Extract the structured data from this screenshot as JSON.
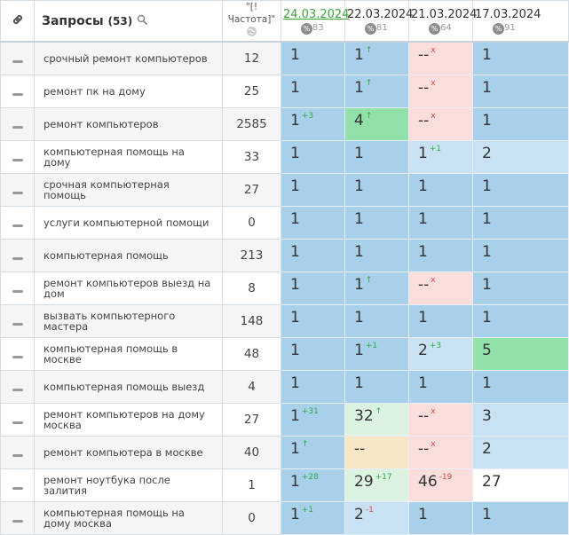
{
  "header": {
    "title": "Запросы",
    "count": "(53)",
    "frequency": "\"[!Частота]\"",
    "badge": "%",
    "dates": [
      {
        "label": "24.03.2024",
        "count": 83
      },
      {
        "label": "22.03.2024",
        "count": 81
      },
      {
        "label": "21.03.2024",
        "count": 64
      },
      {
        "label": "17.03.2024",
        "count": 91
      }
    ]
  },
  "colors": {
    "blue": "#a9d0ea",
    "light": "#c8e2f4",
    "green": "#92e1ab",
    "pink": "#f9dedb",
    "yellow": "#f5e7c4",
    "pale": "#ddf3e2",
    "white": "#ffffff"
  },
  "table": {
    "rows": [
      {
        "query": "срочный ремонт компьютеров",
        "frequency": 12,
        "positions": [
          {
            "value": 1,
            "color": "blue"
          },
          {
            "value": 1,
            "change": "↑",
            "color": "blue"
          },
          {
            "value": "--",
            "change": "x",
            "color": "pink"
          },
          {
            "value": 1,
            "color": "blue"
          }
        ]
      },
      {
        "query": "ремонт пк на дому",
        "frequency": 25,
        "positions": [
          {
            "value": 1,
            "color": "blue"
          },
          {
            "value": 1,
            "change": "↑",
            "color": "blue"
          },
          {
            "value": "--",
            "change": "x",
            "color": "pink"
          },
          {
            "value": 1,
            "color": "blue"
          }
        ]
      },
      {
        "query": "ремонт компьютеров",
        "frequency": 2585,
        "positions": [
          {
            "value": 1,
            "change": "+3",
            "color": "blue"
          },
          {
            "value": 4,
            "change": "↑",
            "color": "green"
          },
          {
            "value": "--",
            "change": "x",
            "color": "pink"
          },
          {
            "value": 1,
            "color": "blue"
          }
        ]
      },
      {
        "query": "компьютерная помощь на дому",
        "frequency": 33,
        "positions": [
          {
            "value": 1,
            "color": "blue"
          },
          {
            "value": 1,
            "color": "blue"
          },
          {
            "value": 1,
            "change": "+1",
            "color": "light"
          },
          {
            "value": 2,
            "color": "light"
          }
        ]
      },
      {
        "query": "срочная компьютерная помощь",
        "frequency": 27,
        "positions": [
          {
            "value": 1,
            "color": "blue"
          },
          {
            "value": 1,
            "color": "blue"
          },
          {
            "value": 1,
            "color": "blue"
          },
          {
            "value": 1,
            "color": "blue"
          }
        ]
      },
      {
        "query": "услуги компьютерной помощи",
        "frequency": 0,
        "positions": [
          {
            "value": 1,
            "color": "blue"
          },
          {
            "value": 1,
            "color": "blue"
          },
          {
            "value": 1,
            "color": "blue"
          },
          {
            "value": 1,
            "color": "blue"
          }
        ]
      },
      {
        "query": "компьютерная помощь",
        "frequency": 213,
        "positions": [
          {
            "value": 1,
            "color": "blue"
          },
          {
            "value": 1,
            "color": "blue"
          },
          {
            "value": 1,
            "color": "blue"
          },
          {
            "value": 1,
            "color": "blue"
          }
        ]
      },
      {
        "query": "ремонт компьютеров выезд на дом",
        "frequency": 8,
        "positions": [
          {
            "value": 1,
            "color": "blue"
          },
          {
            "value": 1,
            "change": "↑",
            "color": "blue"
          },
          {
            "value": "--",
            "change": "x",
            "color": "pink"
          },
          {
            "value": 1,
            "color": "blue"
          }
        ]
      },
      {
        "query": "вызвать компьютерного мастера",
        "frequency": 148,
        "positions": [
          {
            "value": 1,
            "color": "blue"
          },
          {
            "value": 1,
            "color": "blue"
          },
          {
            "value": 1,
            "color": "blue"
          },
          {
            "value": 1,
            "color": "blue"
          }
        ]
      },
      {
        "query": "компьютерная помощь в москве",
        "frequency": 48,
        "positions": [
          {
            "value": 1,
            "color": "blue"
          },
          {
            "value": 1,
            "change": "+1",
            "color": "blue"
          },
          {
            "value": 2,
            "change": "+3",
            "color": "light"
          },
          {
            "value": 5,
            "color": "green"
          }
        ]
      },
      {
        "query": "компьютерная помощь выезд",
        "frequency": 4,
        "positions": [
          {
            "value": 1,
            "color": "blue"
          },
          {
            "value": 1,
            "color": "blue"
          },
          {
            "value": 1,
            "color": "blue"
          },
          {
            "value": 1,
            "color": "blue"
          }
        ]
      },
      {
        "query": "ремонт компьютеров на дому москва",
        "frequency": 27,
        "positions": [
          {
            "value": 1,
            "change": "+31",
            "color": "blue"
          },
          {
            "value": 32,
            "change": "↑",
            "color": "pale"
          },
          {
            "value": "--",
            "change": "x",
            "color": "pink"
          },
          {
            "value": 3,
            "color": "light"
          }
        ]
      },
      {
        "query": "ремонт компьютера в москве",
        "frequency": 40,
        "positions": [
          {
            "value": 1,
            "change": "↑",
            "color": "blue"
          },
          {
            "value": "--",
            "color": "yellow"
          },
          {
            "value": "--",
            "change": "x",
            "color": "pink"
          },
          {
            "value": 2,
            "color": "light"
          }
        ]
      },
      {
        "query": "ремонт ноутбука после залития",
        "frequency": 1,
        "positions": [
          {
            "value": 1,
            "change": "+28",
            "color": "blue"
          },
          {
            "value": 29,
            "change": "+17",
            "color": "pale"
          },
          {
            "value": 46,
            "change": "-19",
            "color": "pink"
          },
          {
            "value": 27,
            "color": "white"
          }
        ]
      },
      {
        "query": "компьютерная помощь на дому москва",
        "frequency": 0,
        "positions": [
          {
            "value": 1,
            "change": "+1",
            "color": "blue"
          },
          {
            "value": 2,
            "change": "-1",
            "color": "light"
          },
          {
            "value": 1,
            "color": "blue"
          },
          {
            "value": 1,
            "color": "blue"
          }
        ]
      }
    ]
  }
}
